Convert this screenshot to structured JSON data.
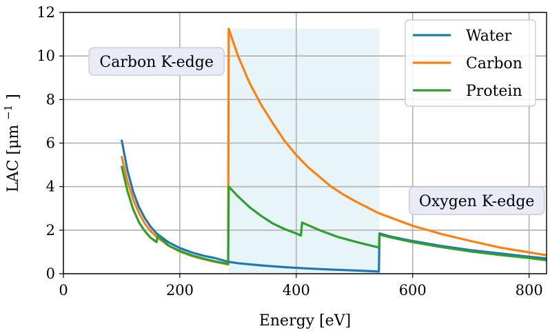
{
  "chart_data": {
    "type": "line",
    "xlabel": "Energy [eV]",
    "ylabel": "LAC [μm",
    "ylabel_sup": "−1",
    "ylabel_close": "]",
    "xlim": [
      0,
      830
    ],
    "ylim": [
      0,
      12
    ],
    "xticks": [
      0,
      200,
      400,
      600,
      800
    ],
    "yticks": [
      0,
      2,
      4,
      6,
      8,
      10,
      12
    ],
    "grid": true,
    "legend_position": "top-right",
    "highlight_band": {
      "x_start": 284,
      "x_end": 543,
      "y_top": 11.25,
      "color": "#e8f5f8"
    },
    "series": [
      {
        "name": "Water",
        "color": "#1f77b4",
        "x": [
          100,
          110,
          120,
          130,
          140,
          150,
          160,
          180,
          200,
          220,
          240,
          260,
          283,
          300,
          340,
          380,
          420,
          460,
          500,
          542,
          543,
          560,
          600,
          650,
          700,
          750,
          800,
          830
        ],
        "y": [
          6.15,
          4.75,
          3.75,
          3.05,
          2.55,
          2.15,
          1.85,
          1.45,
          1.18,
          0.98,
          0.83,
          0.72,
          0.55,
          0.48,
          0.38,
          0.3,
          0.24,
          0.19,
          0.15,
          0.1,
          1.85,
          1.72,
          1.5,
          1.27,
          1.08,
          0.93,
          0.78,
          0.7
        ]
      },
      {
        "name": "Carbon",
        "color": "#ff7f0e",
        "x": [
          100,
          110,
          120,
          130,
          140,
          150,
          160,
          180,
          200,
          220,
          240,
          260,
          283,
          284,
          300,
          320,
          340,
          360,
          380,
          400,
          420,
          440,
          460,
          480,
          500,
          540,
          600,
          650,
          700,
          750,
          800,
          830
        ],
        "y": [
          5.4,
          4.25,
          3.4,
          2.78,
          2.3,
          1.95,
          1.7,
          1.3,
          1.02,
          0.82,
          0.67,
          0.55,
          0.42,
          11.25,
          10.0,
          8.75,
          7.75,
          6.9,
          6.1,
          5.45,
          4.9,
          4.45,
          4.0,
          3.65,
          3.35,
          2.8,
          2.2,
          1.82,
          1.5,
          1.2,
          0.98,
          0.85
        ]
      },
      {
        "name": "Protein",
        "color": "#2ca02c",
        "x": [
          100,
          110,
          120,
          130,
          140,
          150,
          160,
          162,
          180,
          200,
          220,
          240,
          260,
          283,
          284,
          300,
          320,
          340,
          360,
          380,
          400,
          408,
          410,
          440,
          470,
          500,
          542,
          543,
          560,
          600,
          650,
          700,
          750,
          800,
          830
        ],
        "y": [
          4.95,
          3.8,
          2.95,
          2.35,
          1.95,
          1.65,
          1.45,
          1.75,
          1.3,
          1.05,
          0.85,
          0.7,
          0.57,
          0.45,
          4.0,
          3.55,
          3.05,
          2.65,
          2.3,
          2.05,
          1.85,
          1.75,
          2.35,
          2.0,
          1.7,
          1.48,
          1.2,
          1.8,
          1.68,
          1.45,
          1.22,
          1.02,
          0.86,
          0.72,
          0.62
        ]
      }
    ],
    "annotations": [
      {
        "text": "Carbon K-edge",
        "x": 160,
        "y": 9.75
      },
      {
        "text": "Oxygen K-edge",
        "x": 710,
        "y": 3.35
      }
    ]
  }
}
